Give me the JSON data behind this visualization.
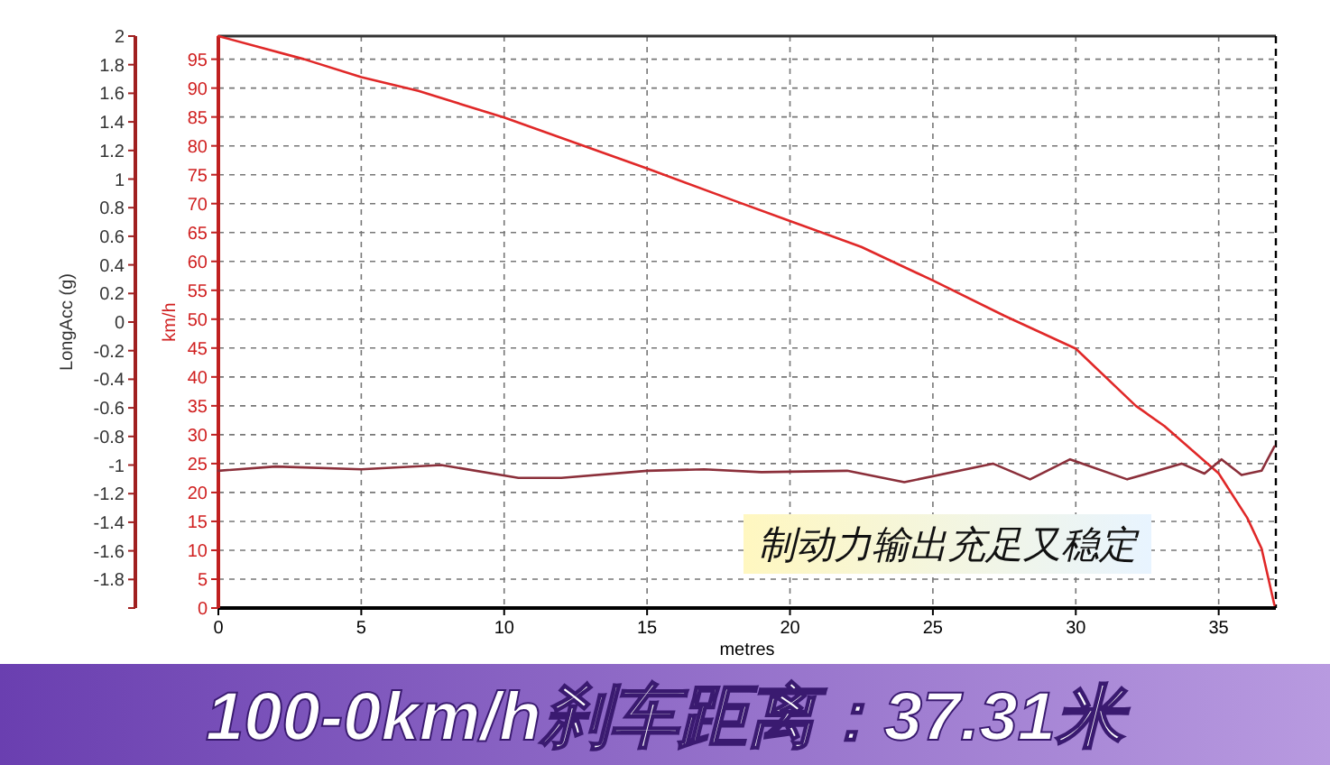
{
  "chart_data": {
    "type": "line",
    "title": "100-0km/h刹车距离：37.31米",
    "xlabel": "metres",
    "ylabel": "km/h",
    "y2label": "LongAcc (g)",
    "annotations": [
      "制动力输出充足又稳定"
    ],
    "xlim": [
      0,
      37
    ],
    "xticks": [
      0,
      5,
      10,
      15,
      20,
      25,
      30,
      35
    ],
    "ylim": [
      0,
      99
    ],
    "yticks": [
      0,
      5,
      10,
      15,
      20,
      25,
      30,
      35,
      40,
      45,
      50,
      55,
      60,
      65,
      70,
      75,
      80,
      85,
      90,
      95
    ],
    "y2lim": [
      -2,
      2
    ],
    "y2ticks": [
      {
        "value": -2,
        "label": null
      },
      -1.8,
      -1.6,
      -1.4,
      -1.2,
      -1,
      -0.8,
      -0.6,
      -0.4,
      -0.2,
      0,
      0.2,
      0.4,
      0.6,
      0.8,
      1,
      1.2,
      1.4,
      1.6,
      1.8,
      2
    ],
    "grid": true,
    "line_style": "solid",
    "marker": "none",
    "series": [
      {
        "color": "#e02828",
        "x": [
          0,
          3,
          5,
          7,
          10,
          15,
          18,
          20,
          22.5,
          25,
          27.5,
          30,
          32.1,
          33.1,
          35,
          36,
          36.5,
          36.95
        ],
        "values": [
          99,
          95,
          91.9,
          89.5,
          84.9,
          76.1,
          70.6,
          67,
          62.5,
          56.7,
          50.6,
          44.9,
          35,
          31.5,
          23.3,
          15.6,
          10.3,
          0.5
        ]
      },
      {
        "color": "#8b2f3a",
        "axis": "y2",
        "x": [
          0,
          2,
          5,
          7.8,
          10.5,
          12,
          15,
          17,
          19,
          22,
          24,
          27.1,
          28.4,
          29.8,
          31.8,
          33.7,
          34.5,
          35.1,
          35.8,
          36.5,
          36.95
        ],
        "values": [
          -1.04,
          -1.01,
          -1.03,
          -1.0,
          -1.09,
          -1.09,
          -1.04,
          -1.03,
          -1.05,
          -1.04,
          -1.12,
          -0.99,
          -1.1,
          -0.96,
          -1.1,
          -0.99,
          -1.06,
          -0.96,
          -1.07,
          -1.04,
          -0.87
        ]
      }
    ]
  }
}
